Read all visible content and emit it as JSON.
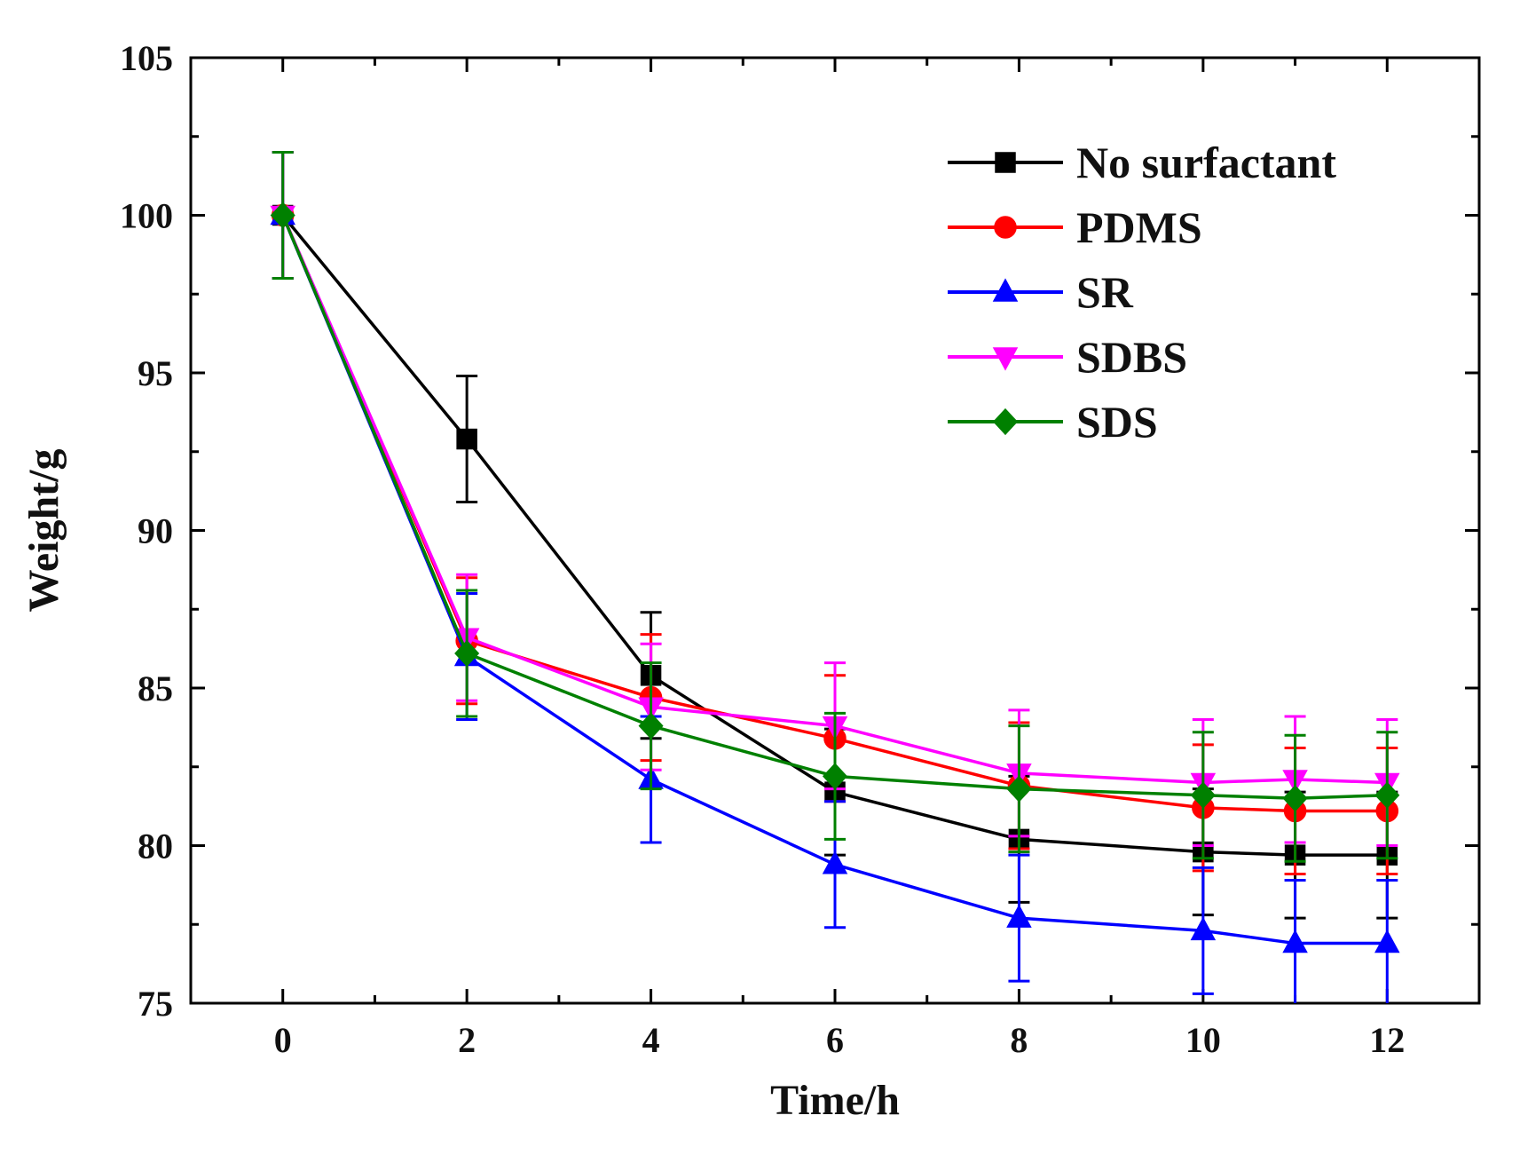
{
  "chart_data": {
    "type": "line",
    "title": "",
    "xlabel": "Time/h",
    "ylabel": "Weight/g",
    "xlim": [
      -1,
      13
    ],
    "ylim": [
      75,
      105
    ],
    "x_ticks": [
      0,
      2,
      4,
      6,
      8,
      10,
      12
    ],
    "x_tick_labels": [
      "0",
      "2",
      "4",
      "6",
      "8",
      "10",
      "12"
    ],
    "y_ticks": [
      75,
      80,
      85,
      90,
      95,
      100,
      105
    ],
    "y_tick_labels": [
      "75",
      "80",
      "85",
      "90",
      "95",
      "100",
      "105"
    ],
    "grid": false,
    "legend_position": "top-right",
    "x": [
      0,
      2,
      4,
      6,
      8,
      10,
      11,
      12
    ],
    "series": [
      {
        "name": "No surfactant",
        "color": "#000000",
        "marker": "square",
        "values": [
          100,
          92.9,
          85.4,
          81.7,
          80.2,
          79.8,
          79.7,
          79.7
        ],
        "errors": [
          2.0,
          2.0,
          2.0,
          2.0,
          2.0,
          2.0,
          2.0,
          2.0
        ]
      },
      {
        "name": "PDMS",
        "color": "#ff0000",
        "marker": "circle",
        "values": [
          100,
          86.5,
          84.7,
          83.4,
          81.9,
          81.2,
          81.1,
          81.1
        ],
        "errors": [
          2.0,
          2.0,
          2.0,
          2.0,
          2.0,
          2.0,
          2.0,
          2.0
        ]
      },
      {
        "name": "SR",
        "color": "#0000ff",
        "marker": "triangle-up",
        "values": [
          100,
          86.0,
          82.1,
          79.4,
          77.7,
          77.3,
          76.9,
          76.9
        ],
        "errors": [
          2.0,
          2.0,
          2.0,
          2.0,
          2.0,
          2.0,
          2.0,
          2.0
        ]
      },
      {
        "name": "SDBS",
        "color": "#ff00ff",
        "marker": "triangle-down",
        "values": [
          100,
          86.6,
          84.4,
          83.8,
          82.3,
          82.0,
          82.1,
          82.0
        ],
        "errors": [
          2.0,
          2.0,
          2.0,
          2.0,
          2.0,
          2.0,
          2.0,
          2.0
        ]
      },
      {
        "name": "SDS",
        "color": "#008000",
        "marker": "diamond",
        "values": [
          100,
          86.1,
          83.8,
          82.2,
          81.8,
          81.6,
          81.5,
          81.6
        ],
        "errors": [
          2.0,
          2.0,
          2.0,
          2.0,
          2.0,
          2.0,
          2.0,
          2.0
        ]
      }
    ]
  }
}
